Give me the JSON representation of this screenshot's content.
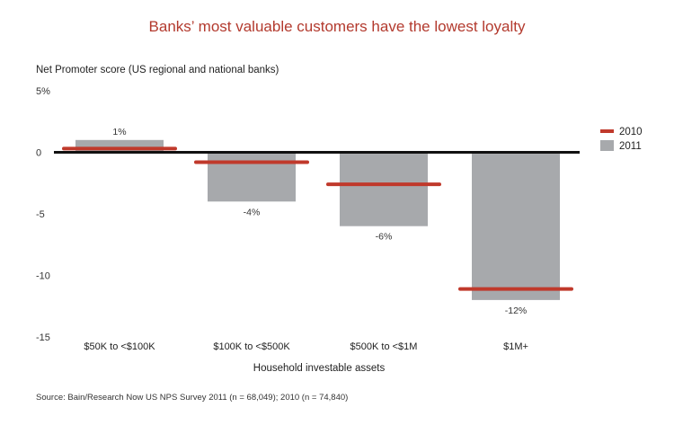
{
  "chart_data": {
    "type": "bar",
    "title": "Banks’ most valuable customers have the lowest loyalty",
    "ylabel": "Net Promoter score (US regional and national banks)",
    "xlabel": "Household investable assets",
    "categories": [
      "$50K to <$100K",
      "$100K to <$500K",
      "$500K to <$1M",
      "$1M+"
    ],
    "series": [
      {
        "name": "2011",
        "style": "bar",
        "color": "#a7a9ac",
        "values": [
          1,
          -4,
          -6,
          -12
        ],
        "labels": [
          "1%",
          "-4%",
          "-6%",
          "-12%"
        ]
      },
      {
        "name": "2010",
        "style": "marker-line",
        "color": "#c0392b",
        "values": [
          0.3,
          -0.8,
          -2.6,
          -11.1
        ]
      }
    ],
    "yticks": [
      5,
      0,
      -5,
      -10,
      -15
    ],
    "ytick_labels": [
      "5%",
      "0",
      "-5",
      "-10",
      "-15"
    ],
    "ylim": [
      -15,
      5
    ],
    "legend": "top-right",
    "grid": false
  },
  "source": "Source: Bain/Research Now US NPS Survey 2011 (n = 68,049); 2010 (n = 74,840)"
}
